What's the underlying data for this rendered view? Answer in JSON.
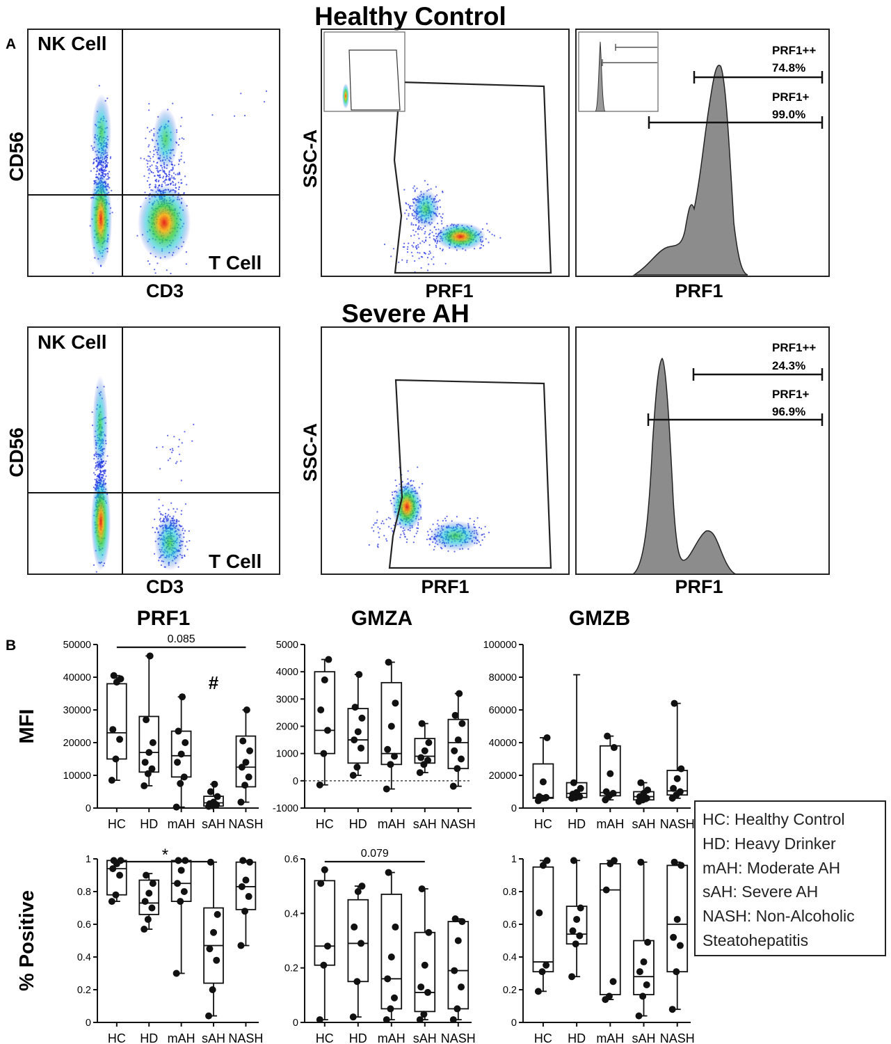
{
  "panel_labels": {
    "a": "A",
    "b": "B"
  },
  "sections": {
    "top": "Healthy Control",
    "bottom": "Severe AH"
  },
  "flow": {
    "quad_nk": "NK Cell",
    "quad_t": "T Cell",
    "quad_x": "CD3",
    "quad_y": "CD56",
    "gate_x": "PRF1",
    "gate_y": "SSC-A",
    "hist_x": "PRF1",
    "hc_hist": [
      {
        "label": "PRF1++",
        "value": "74.8%"
      },
      {
        "label": "PRF1+",
        "value": "99.0%"
      }
    ],
    "sah_hist": [
      {
        "label": "PRF1++",
        "value": "24.3%"
      },
      {
        "label": "PRF1+",
        "value": "96.9%"
      }
    ]
  },
  "legend": [
    "HC: Healthy Control",
    "HD: Heavy Drinker",
    "mAH: Moderate AH",
    "sAH: Severe AH",
    "NASH: Non-Alcoholic",
    "Steatohepatitis"
  ],
  "colors": {
    "axis": "#111111",
    "box": "#111111",
    "point": "#111111",
    "density_low": "#1f2de0",
    "density_high": "#e01010",
    "histogram": "#8c8c8c"
  },
  "chart_data": [
    {
      "type": "box",
      "title": "PRF1",
      "ylabel": "MFI",
      "categories": [
        "HC",
        "HD",
        "mAH",
        "sAH",
        "NASH"
      ],
      "ylim": [
        0,
        50000
      ],
      "yticks": [
        0,
        10000,
        20000,
        30000,
        40000,
        50000
      ],
      "boxes": [
        {
          "min": 8500,
          "q1": 15000,
          "median": 23000,
          "q3": 38000,
          "max": 40500
        },
        {
          "min": 6800,
          "q1": 11000,
          "median": 17000,
          "q3": 28000,
          "max": 46500
        },
        {
          "min": 300,
          "q1": 9500,
          "median": 16000,
          "q3": 23500,
          "max": 34000
        },
        {
          "min": 500,
          "q1": 600,
          "median": 1600,
          "q3": 3600,
          "max": 7300
        },
        {
          "min": 1800,
          "q1": 6500,
          "median": 12500,
          "q3": 22000,
          "max": 30000
        }
      ],
      "points": [
        [
          8500,
          15000,
          21000,
          24000,
          38500,
          39500,
          40500
        ],
        [
          6800,
          10500,
          12000,
          14000,
          17000,
          20000,
          27000,
          46500
        ],
        [
          300,
          7500,
          9500,
          14000,
          16500,
          20000,
          23500,
          34000
        ],
        [
          500,
          700,
          1000,
          1300,
          1800,
          3500,
          5000,
          7300
        ],
        [
          1800,
          7000,
          9500,
          12500,
          14000,
          17500,
          20500,
          30000
        ]
      ],
      "annotations": [
        {
          "type": "bracket",
          "from": "HC",
          "to": "NASH",
          "text": "0.085"
        },
        {
          "type": "marker",
          "at": "sAH",
          "text": "#"
        }
      ]
    },
    {
      "type": "box",
      "title": "GMZA",
      "ylabel": "",
      "categories": [
        "HC",
        "HD",
        "mAH",
        "sAH",
        "NASH"
      ],
      "ylim": [
        -1000,
        5000
      ],
      "yticks": [
        -1000,
        0,
        1000,
        2000,
        3000,
        4000,
        5000
      ],
      "zero_line": true,
      "boxes": [
        {
          "min": -150,
          "q1": 1000,
          "median": 1850,
          "q3": 4000,
          "max": 4450
        },
        {
          "min": 200,
          "q1": 650,
          "median": 1500,
          "q3": 2650,
          "max": 3900
        },
        {
          "min": -300,
          "q1": 600,
          "median": 1000,
          "q3": 3600,
          "max": 4350
        },
        {
          "min": 300,
          "q1": 650,
          "median": 900,
          "q3": 1550,
          "max": 2100
        },
        {
          "min": -200,
          "q1": 450,
          "median": 1400,
          "q3": 2250,
          "max": 3200
        }
      ],
      "points": [
        [
          -150,
          1000,
          1850,
          2600,
          3700,
          4450
        ],
        [
          200,
          500,
          1200,
          1500,
          1800,
          2300,
          2700,
          3900
        ],
        [
          -300,
          600,
          900,
          1150,
          2000,
          2850,
          4350
        ],
        [
          300,
          600,
          750,
          850,
          1100,
          1400,
          2100
        ],
        [
          -200,
          450,
          800,
          1100,
          1500,
          2100,
          2400,
          3200
        ]
      ]
    },
    {
      "type": "box",
      "title": "GMZB",
      "ylabel": "",
      "categories": [
        "HC",
        "HD",
        "mAH",
        "sAH",
        "NASH"
      ],
      "ylim": [
        0,
        100000
      ],
      "yticks": [
        0,
        20000,
        40000,
        60000,
        80000,
        100000
      ],
      "boxes": [
        {
          "min": 4500,
          "q1": 6000,
          "median": 6500,
          "q3": 27000,
          "max": 43000
        },
        {
          "min": 6000,
          "q1": 6500,
          "median": 9000,
          "q3": 15500,
          "max": 81500
        },
        {
          "min": 5000,
          "q1": 7500,
          "median": 9500,
          "q3": 38000,
          "max": 44000
        },
        {
          "min": 4000,
          "q1": 5000,
          "median": 7000,
          "q3": 10000,
          "max": 15500
        },
        {
          "min": 6000,
          "q1": 8000,
          "median": 10500,
          "q3": 23000,
          "max": 64000
        }
      ],
      "points": [
        [
          4500,
          6000,
          6500,
          7000,
          16000,
          43000
        ],
        [
          6000,
          6500,
          7000,
          8500,
          9500,
          12000,
          15500
        ],
        [
          5000,
          7500,
          9000,
          10000,
          21000,
          37000,
          44000
        ],
        [
          4000,
          5000,
          6000,
          7000,
          9000,
          11000,
          15500
        ],
        [
          6000,
          8000,
          10000,
          12000,
          18000,
          24000,
          64000
        ]
      ]
    },
    {
      "type": "box",
      "title": "",
      "ylabel": "% Positive",
      "categories": [
        "HC",
        "HD",
        "mAH",
        "sAH",
        "NASH"
      ],
      "ylim": [
        0,
        1.0
      ],
      "yticks": [
        0.0,
        0.2,
        0.4,
        0.6,
        0.8,
        1.0
      ],
      "boxes": [
        {
          "min": 0.74,
          "q1": 0.78,
          "median": 0.94,
          "q3": 0.99,
          "max": 0.99
        },
        {
          "min": 0.57,
          "q1": 0.66,
          "median": 0.73,
          "q3": 0.87,
          "max": 0.91
        },
        {
          "min": 0.3,
          "q1": 0.74,
          "median": 0.85,
          "q3": 0.99,
          "max": 0.99
        },
        {
          "min": 0.04,
          "q1": 0.24,
          "median": 0.47,
          "q3": 0.7,
          "max": 0.98
        },
        {
          "min": 0.47,
          "q1": 0.69,
          "median": 0.83,
          "q3": 0.98,
          "max": 0.99
        }
      ],
      "points": [
        [
          0.74,
          0.78,
          0.9,
          0.94,
          0.97,
          0.99,
          0.99
        ],
        [
          0.57,
          0.63,
          0.7,
          0.74,
          0.79,
          0.85,
          0.9
        ],
        [
          0.3,
          0.74,
          0.8,
          0.85,
          0.93,
          0.99,
          0.99
        ],
        [
          0.04,
          0.2,
          0.38,
          0.45,
          0.55,
          0.66,
          0.98
        ],
        [
          0.47,
          0.68,
          0.77,
          0.83,
          0.87,
          0.98,
          0.99
        ]
      ],
      "annotations": [
        {
          "type": "bracket",
          "from": "HC",
          "to": "sAH",
          "text": "*"
        }
      ]
    },
    {
      "type": "box",
      "title": "",
      "ylabel": "",
      "categories": [
        "HC",
        "HD",
        "mAH",
        "sAH",
        "NASH"
      ],
      "ylim": [
        0,
        0.6
      ],
      "yticks": [
        0.0,
        0.2,
        0.4,
        0.6
      ],
      "boxes": [
        {
          "min": 0.01,
          "q1": 0.21,
          "median": 0.28,
          "q3": 0.52,
          "max": 0.56
        },
        {
          "min": 0.02,
          "q1": 0.15,
          "median": 0.29,
          "q3": 0.45,
          "max": 0.5
        },
        {
          "min": 0.01,
          "q1": 0.05,
          "median": 0.16,
          "q3": 0.47,
          "max": 0.55
        },
        {
          "min": 0.01,
          "q1": 0.04,
          "median": 0.11,
          "q3": 0.33,
          "max": 0.49
        },
        {
          "min": 0.01,
          "q1": 0.05,
          "median": 0.19,
          "q3": 0.37,
          "max": 0.38
        }
      ],
      "points": [
        [
          0.01,
          0.21,
          0.28,
          0.51,
          0.56
        ],
        [
          0.02,
          0.15,
          0.29,
          0.35,
          0.48,
          0.5
        ],
        [
          0.01,
          0.05,
          0.09,
          0.16,
          0.24,
          0.35,
          0.55
        ],
        [
          0.01,
          0.03,
          0.11,
          0.13,
          0.21,
          0.33,
          0.49
        ],
        [
          0.01,
          0.05,
          0.13,
          0.19,
          0.3,
          0.37,
          0.38
        ]
      ],
      "annotations": [
        {
          "type": "bracket",
          "from": "HC",
          "to": "sAH",
          "text": "0.079"
        }
      ]
    },
    {
      "type": "box",
      "title": "",
      "ylabel": "",
      "categories": [
        "HC",
        "HD",
        "mAH",
        "sAH",
        "NASH"
      ],
      "ylim": [
        0,
        1.0
      ],
      "yticks": [
        0.0,
        0.2,
        0.4,
        0.6,
        0.8,
        1.0
      ],
      "boxes": [
        {
          "min": 0.19,
          "q1": 0.31,
          "median": 0.37,
          "q3": 0.95,
          "max": 0.99
        },
        {
          "min": 0.28,
          "q1": 0.48,
          "median": 0.54,
          "q3": 0.71,
          "max": 0.99
        },
        {
          "min": 0.14,
          "q1": 0.17,
          "median": 0.81,
          "q3": 0.97,
          "max": 0.99
        },
        {
          "min": 0.04,
          "q1": 0.17,
          "median": 0.28,
          "q3": 0.5,
          "max": 0.98
        },
        {
          "min": 0.08,
          "q1": 0.31,
          "median": 0.6,
          "q3": 0.96,
          "max": 0.98
        }
      ],
      "points": [
        [
          0.19,
          0.31,
          0.35,
          0.67,
          0.96,
          0.99
        ],
        [
          0.28,
          0.48,
          0.53,
          0.56,
          0.63,
          0.7,
          0.99
        ],
        [
          0.14,
          0.16,
          0.25,
          0.81,
          0.97,
          0.99
        ],
        [
          0.04,
          0.16,
          0.23,
          0.31,
          0.37,
          0.49,
          0.98
        ],
        [
          0.08,
          0.31,
          0.47,
          0.52,
          0.63,
          0.96,
          0.98
        ]
      ]
    }
  ]
}
